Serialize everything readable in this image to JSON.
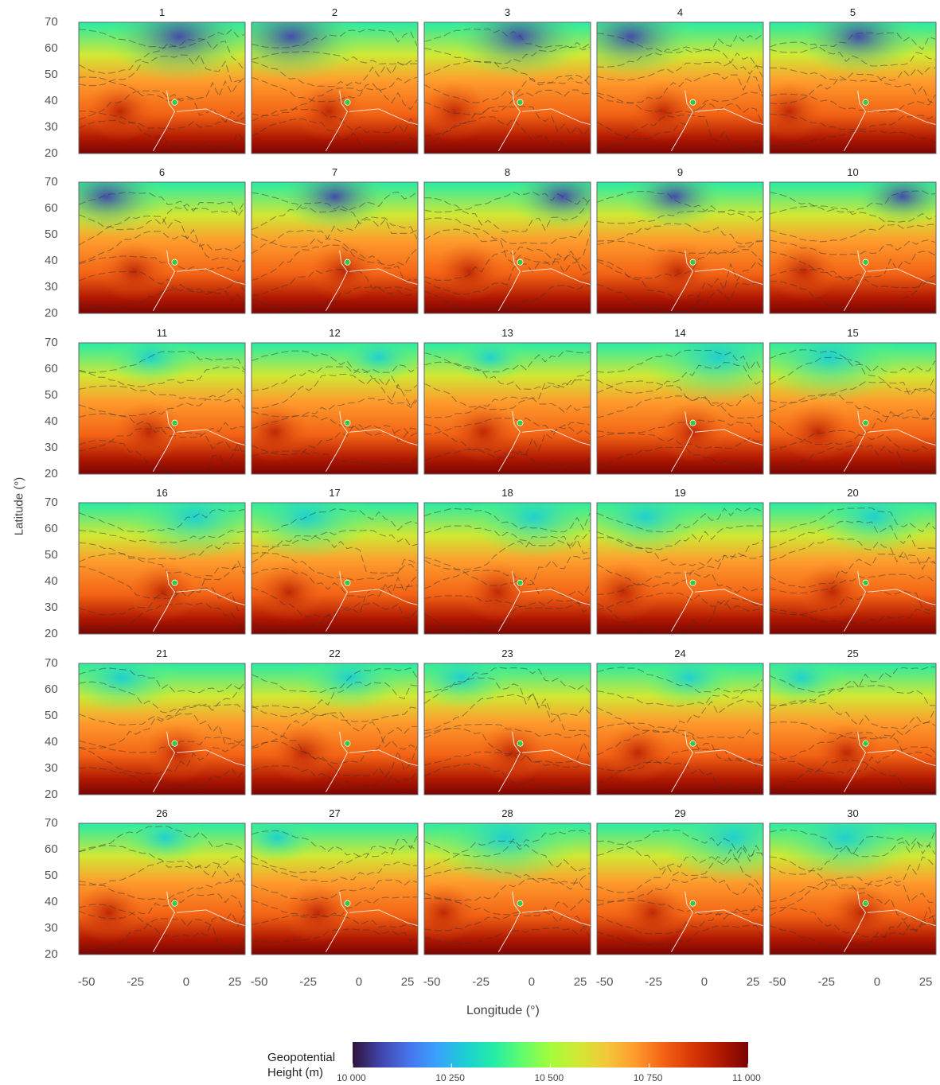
{
  "chart_data": {
    "type": "heatmap",
    "description_panels": "30 small-multiple maps of upper-level geopotential height with flow streamlines over the North Atlantic / Europe; a green marker sits near the Iberian Peninsula in every panel",
    "panel_titles": [
      "1",
      "2",
      "3",
      "4",
      "5",
      "6",
      "7",
      "8",
      "9",
      "10",
      "11",
      "12",
      "13",
      "14",
      "15",
      "16",
      "17",
      "18",
      "19",
      "20",
      "21",
      "22",
      "23",
      "24",
      "25",
      "26",
      "27",
      "28",
      "29",
      "30"
    ],
    "xlabel": "Longitude (°)",
    "ylabel": "Latitude (°)",
    "x_ticks": [
      "-50",
      "-25",
      "0",
      "25"
    ],
    "y_ticks": [
      "70",
      "60",
      "50",
      "40",
      "30",
      "20"
    ],
    "xlim": [
      -55,
      30
    ],
    "ylim": [
      20,
      70
    ],
    "marker": {
      "lon": -6,
      "lat": 39.5,
      "color": "#2ecc40"
    },
    "colorbar": {
      "title_line1": "Geopotential",
      "title_line2": "Height (m)",
      "ticks": [
        "10 000",
        "10 250",
        "10 500",
        "10 750",
        "11 000"
      ],
      "range": [
        10000,
        11000
      ],
      "colors": [
        "#30123b",
        "#4145ab",
        "#4675ed",
        "#39a2fc",
        "#1bcfd4",
        "#24eca6",
        "#61fc6c",
        "#a4fc3b",
        "#d1e834",
        "#f3c63a",
        "#fe9b2d",
        "#f36315",
        "#d93806",
        "#b11901",
        "#7a0402"
      ]
    }
  }
}
